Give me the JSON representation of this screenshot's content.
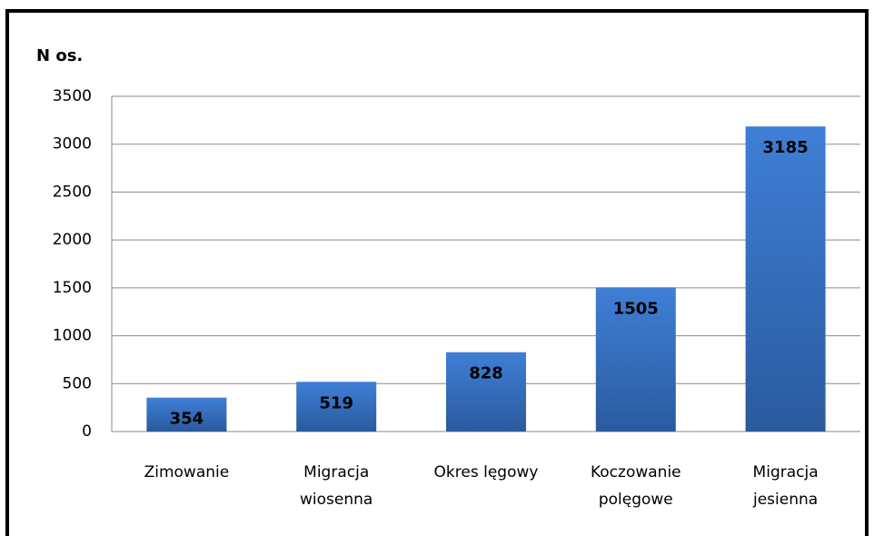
{
  "chart_data": {
    "type": "bar",
    "y_axis_label": "N os.",
    "categories": [
      [
        "Zimowanie"
      ],
      [
        "Migracja",
        "wiosenna"
      ],
      [
        "Okres lęgowy"
      ],
      [
        "Koczowanie",
        "polęgowe"
      ],
      [
        "Migracja",
        "jesienna"
      ]
    ],
    "values": [
      354,
      519,
      828,
      1505,
      3185
    ],
    "color": "#3a74c4",
    "ylim": [
      0,
      3500
    ],
    "yticks": [
      0,
      500,
      1000,
      1500,
      2000,
      2500,
      3000,
      3500
    ],
    "grid": true
  }
}
